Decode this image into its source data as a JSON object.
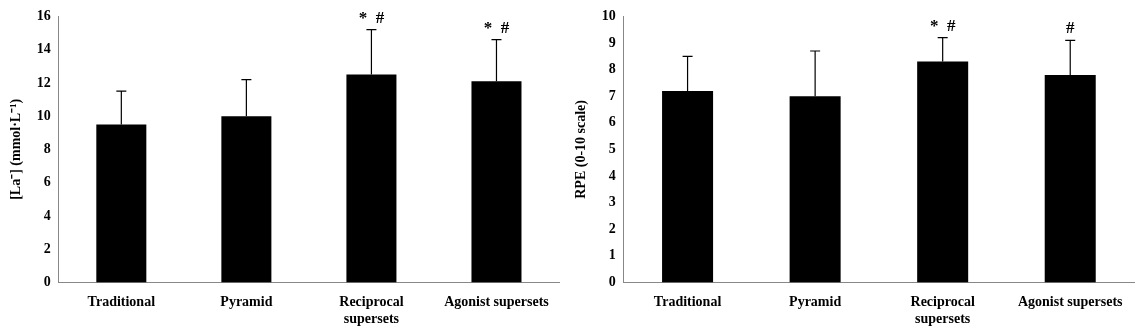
{
  "chart_data": [
    {
      "type": "bar",
      "ylabel": "[La⁻] (mmol·L⁻¹)",
      "categories": [
        "Traditional",
        "Pyramid",
        "Reciprocal supersets",
        "Agonist supersets"
      ],
      "values": [
        9.5,
        10.0,
        12.5,
        12.1
      ],
      "errors": [
        [
          9.5,
          11.5
        ],
        [
          10.0,
          12.2
        ],
        [
          12.5,
          15.2
        ],
        [
          12.1,
          14.6
        ]
      ],
      "color": "#000000",
      "ylim": [
        0,
        16
      ],
      "yticks": [
        0,
        2,
        4,
        6,
        8,
        10,
        12,
        14,
        16
      ],
      "grid": false,
      "legend": false,
      "annotations": [
        {
          "text": "* #",
          "x": "Reciprocal supersets",
          "y": 15.2
        },
        {
          "text": "* #",
          "x": "Agonist supersets",
          "y": 14.6
        }
      ]
    },
    {
      "type": "bar",
      "ylabel": "RPE (0-10 scale)",
      "categories": [
        "Traditional",
        "Pyramid",
        "Reciprocal supersets",
        "Agonist supersets"
      ],
      "values": [
        7.2,
        7.0,
        8.3,
        7.8
      ],
      "errors": [
        [
          7.2,
          8.5
        ],
        [
          7.0,
          8.7
        ],
        [
          8.3,
          9.2
        ],
        [
          7.8,
          9.1
        ]
      ],
      "color": "#000000",
      "ylim": [
        0,
        10
      ],
      "yticks": [
        0,
        1,
        2,
        3,
        4,
        5,
        6,
        7,
        8,
        9,
        10
      ],
      "grid": false,
      "legend": false,
      "annotations": [
        {
          "text": "* #",
          "x": "Reciprocal supersets",
          "y": 9.2
        },
        {
          "text": "#",
          "x": "Agonist supersets",
          "y": 9.1
        }
      ]
    }
  ]
}
